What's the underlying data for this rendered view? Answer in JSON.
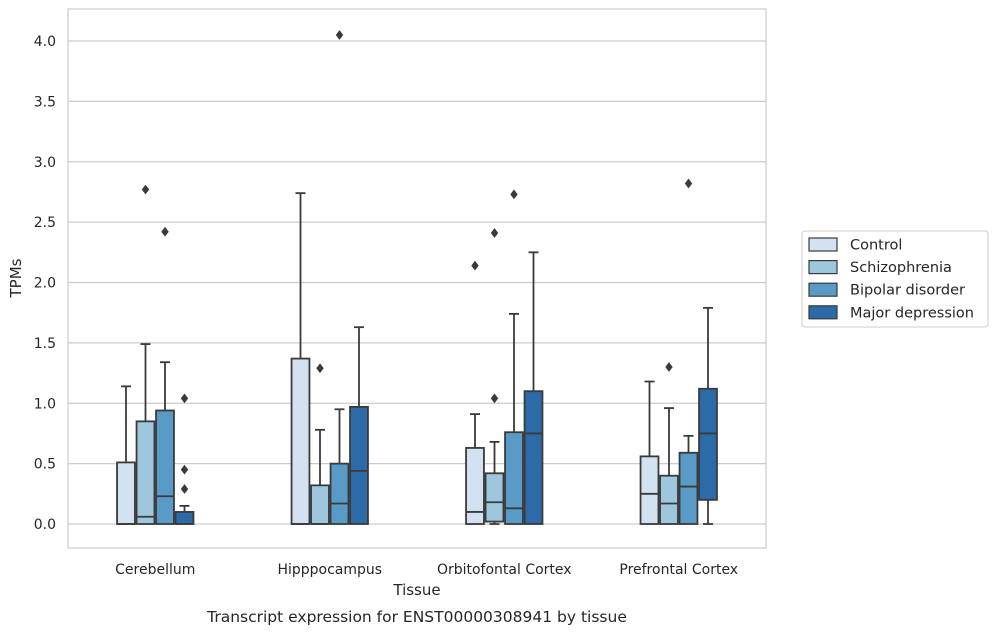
{
  "chart_data": {
    "type": "box",
    "xlabel": "Tissue",
    "ylabel": "TPMs",
    "caption": "Transcript expression for ENST00000308941 by tissue",
    "ylim": [
      -0.2,
      4.25
    ],
    "yticks": [
      "0.0",
      "0.5",
      "1.0",
      "1.5",
      "2.0",
      "2.5",
      "3.0",
      "3.5",
      "4.0"
    ],
    "grid": "horizontal",
    "legend_position": "right",
    "categories": [
      "Cerebellum",
      "Hipppocampus",
      "Orbitofontal Cortex",
      "Prefrontal Cortex"
    ],
    "series": [
      {
        "name": "Control",
        "color": "#d3e2f0",
        "boxes": [
          {
            "q1": 0.0,
            "median": 0.0,
            "q3": 0.51,
            "whisker_low": 0.0,
            "whisker_high": 1.14,
            "outliers": []
          },
          {
            "q1": 0.0,
            "median": 0.0,
            "q3": 1.37,
            "whisker_low": 0.0,
            "whisker_high": 2.74,
            "outliers": []
          },
          {
            "q1": 0.0,
            "median": 0.1,
            "q3": 0.63,
            "whisker_low": 0.0,
            "whisker_high": 0.91,
            "outliers": [
              2.14
            ]
          },
          {
            "q1": 0.0,
            "median": 0.25,
            "q3": 0.56,
            "whisker_low": 0.0,
            "whisker_high": 1.18,
            "outliers": []
          }
        ]
      },
      {
        "name": "Schizophrenia",
        "color": "#9ec7de",
        "boxes": [
          {
            "q1": 0.0,
            "median": 0.06,
            "q3": 0.85,
            "whisker_low": 0.0,
            "whisker_high": 1.49,
            "outliers": [
              2.77
            ]
          },
          {
            "q1": 0.0,
            "median": 0.0,
            "q3": 0.32,
            "whisker_low": 0.0,
            "whisker_high": 0.78,
            "outliers": [
              1.29
            ]
          },
          {
            "q1": 0.02,
            "median": 0.18,
            "q3": 0.42,
            "whisker_low": 0.0,
            "whisker_high": 0.68,
            "outliers": [
              1.04,
              2.41
            ]
          },
          {
            "q1": 0.0,
            "median": 0.17,
            "q3": 0.4,
            "whisker_low": 0.0,
            "whisker_high": 0.96,
            "outliers": [
              1.3
            ]
          }
        ]
      },
      {
        "name": "Bipolar disorder",
        "color": "#5a9ac7",
        "boxes": [
          {
            "q1": 0.0,
            "median": 0.23,
            "q3": 0.94,
            "whisker_low": 0.0,
            "whisker_high": 1.34,
            "outliers": [
              2.42
            ]
          },
          {
            "q1": 0.0,
            "median": 0.17,
            "q3": 0.5,
            "whisker_low": 0.0,
            "whisker_high": 0.95,
            "outliers": [
              4.05
            ]
          },
          {
            "q1": 0.0,
            "median": 0.13,
            "q3": 0.76,
            "whisker_low": 0.0,
            "whisker_high": 1.74,
            "outliers": [
              2.73
            ]
          },
          {
            "q1": 0.0,
            "median": 0.31,
            "q3": 0.59,
            "whisker_low": 0.0,
            "whisker_high": 0.73,
            "outliers": [
              2.82
            ]
          }
        ]
      },
      {
        "name": "Major depression",
        "color": "#2c6aa8",
        "boxes": [
          {
            "q1": 0.0,
            "median": 0.0,
            "q3": 0.1,
            "whisker_low": 0.0,
            "whisker_high": 0.15,
            "outliers": [
              0.29,
              0.45,
              1.04
            ]
          },
          {
            "q1": 0.0,
            "median": 0.44,
            "q3": 0.97,
            "whisker_low": 0.0,
            "whisker_high": 1.63,
            "outliers": []
          },
          {
            "q1": 0.0,
            "median": 0.75,
            "q3": 1.1,
            "whisker_low": 0.0,
            "whisker_high": 2.25,
            "outliers": []
          },
          {
            "q1": 0.2,
            "median": 0.75,
            "q3": 1.12,
            "whisker_low": 0.0,
            "whisker_high": 1.79,
            "outliers": []
          }
        ]
      }
    ]
  }
}
